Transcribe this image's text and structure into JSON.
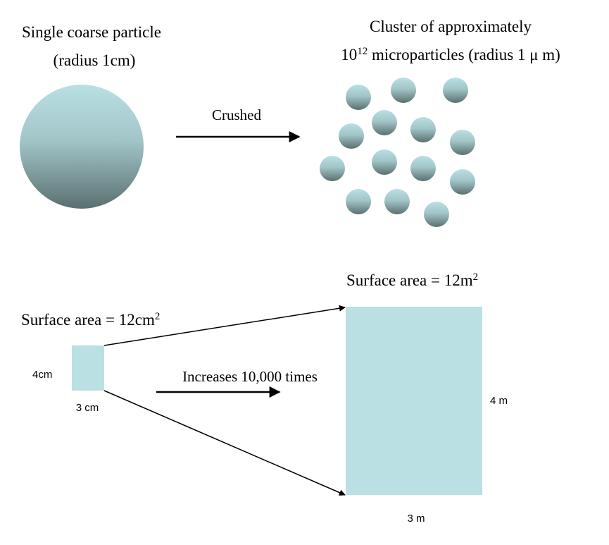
{
  "top": {
    "coarse_title": "Single coarse particle",
    "coarse_subtitle": "(radius 1cm)",
    "crushed_label": "Crushed",
    "cluster_title": "Cluster of approximately",
    "cluster_subtitle_prefix": "10",
    "cluster_subtitle_exponent": "12",
    "cluster_subtitle_suffix": " microparticles (radius 1 μ m)"
  },
  "bottom": {
    "small_area_prefix": "Surface area = 12cm",
    "small_area_exponent": "2",
    "large_area_prefix": "Surface area = 12m",
    "large_area_exponent": "2",
    "increase_label": "Increases 10,000 times",
    "small_height_label": "4cm",
    "small_width_label": "3 cm",
    "large_height_label": "4 m",
    "large_width_label": "3 m"
  },
  "colors": {
    "sphere_light": "#b9e0e3",
    "sphere_dark": "#5a7070",
    "square_fill": "#bae0e3",
    "arrow": "#000000"
  }
}
